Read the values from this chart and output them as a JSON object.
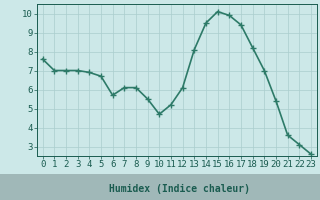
{
  "x": [
    0,
    1,
    2,
    3,
    4,
    5,
    6,
    7,
    8,
    9,
    10,
    11,
    12,
    13,
    14,
    15,
    16,
    17,
    18,
    19,
    20,
    21,
    22,
    23
  ],
  "y": [
    7.6,
    7.0,
    7.0,
    7.0,
    6.9,
    6.7,
    5.7,
    6.1,
    6.1,
    5.5,
    4.7,
    5.2,
    6.1,
    8.1,
    9.5,
    10.1,
    9.9,
    9.4,
    8.2,
    7.0,
    5.4,
    3.6,
    3.1,
    2.6
  ],
  "xlabel": "Humidex (Indice chaleur)",
  "xlim": [
    -0.5,
    23.5
  ],
  "ylim": [
    2.5,
    10.5
  ],
  "yticks": [
    3,
    4,
    5,
    6,
    7,
    8,
    9,
    10
  ],
  "xticks": [
    0,
    1,
    2,
    3,
    4,
    5,
    6,
    7,
    8,
    9,
    10,
    11,
    12,
    13,
    14,
    15,
    16,
    17,
    18,
    19,
    20,
    21,
    22,
    23
  ],
  "line_color": "#2d7a68",
  "marker": "+",
  "bg_color": "#cce8e8",
  "grid_color": "#aacece",
  "text_color": "#1a5c50",
  "bottom_bar_color": "#a0b8b8",
  "xlabel_fontsize": 7,
  "tick_fontsize": 6.5,
  "linewidth": 1.2,
  "markersize": 4,
  "markeredgewidth": 1.0
}
